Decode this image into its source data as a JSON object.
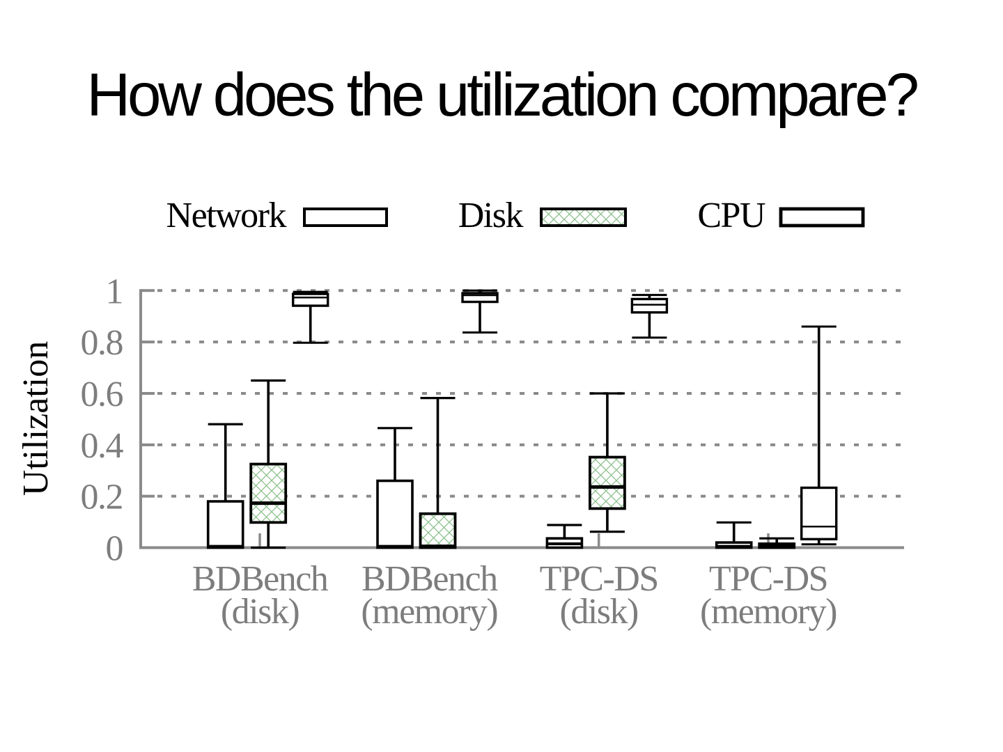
{
  "chart_data": {
    "type": "boxplot",
    "title": "How does the utilization compare?",
    "ylabel": "Utilization",
    "xlabel": "",
    "ylim": [
      0,
      1
    ],
    "yticks": [
      0,
      0.2,
      0.4,
      0.6,
      0.8,
      1
    ],
    "ytick_labels": [
      "0",
      "0.2",
      "0.4",
      "0.6",
      "0.8",
      "1"
    ],
    "grid": "dotted-horizontal",
    "legend_position": "top",
    "categories": [
      {
        "line1": "BDBench",
        "line2": "(disk)"
      },
      {
        "line1": "BDBench",
        "line2": "(memory)"
      },
      {
        "line1": "TPC-DS",
        "line2": "(disk)"
      },
      {
        "line1": "TPC-DS",
        "line2": "(memory)"
      }
    ],
    "legend": [
      {
        "label": "Network",
        "swatch": "white-box"
      },
      {
        "label": "Disk",
        "swatch": "green-crosshatch-box"
      },
      {
        "label": "CPU",
        "swatch": "white-box"
      }
    ],
    "series": [
      {
        "name": "Network",
        "fill": "white",
        "boxes": [
          {
            "low": 0.0,
            "q1": 0.0,
            "median": 0.005,
            "q3": 0.18,
            "high": 0.48
          },
          {
            "low": 0.0,
            "q1": 0.0,
            "median": 0.005,
            "q3": 0.26,
            "high": 0.465
          },
          {
            "low": 0.0,
            "q1": 0.0,
            "median": 0.015,
            "q3": 0.036,
            "high": 0.088
          },
          {
            "low": 0.0,
            "q1": 0.0,
            "median": 0.005,
            "q3": 0.02,
            "high": 0.098
          }
        ]
      },
      {
        "name": "Disk",
        "fill": "green-crosshatch",
        "boxes": [
          {
            "low": 0.0,
            "q1": 0.098,
            "median": 0.173,
            "q3": 0.325,
            "high": 0.65
          },
          {
            "low": 0.0,
            "q1": 0.0,
            "median": 0.005,
            "q3": 0.132,
            "high": 0.582
          },
          {
            "low": 0.062,
            "q1": 0.152,
            "median": 0.236,
            "q3": 0.352,
            "high": 0.6
          },
          {
            "low": 0.0,
            "q1": 0.0,
            "median": 0.005,
            "q3": 0.015,
            "high": 0.036
          }
        ]
      },
      {
        "name": "CPU",
        "fill": "white",
        "boxes": [
          {
            "low": 0.797,
            "q1": 0.941,
            "median": 0.973,
            "q3": 0.987,
            "high": 0.995
          },
          {
            "low": 0.837,
            "q1": 0.956,
            "median": 0.982,
            "q3": 0.99,
            "high": 1.0
          },
          {
            "low": 0.817,
            "q1": 0.915,
            "median": 0.945,
            "q3": 0.967,
            "high": 0.983
          },
          {
            "low": 0.013,
            "q1": 0.033,
            "median": 0.082,
            "q3": 0.233,
            "high": 0.86
          }
        ]
      }
    ],
    "colors": {
      "box_border": "#000000",
      "hatch_green": "#8cc08c",
      "axis_gray": "#8a8a8a",
      "tick_gray": "#8a8a8a",
      "grid_gray": "#8a8a8a",
      "label_gray": "#7d7d7d",
      "title_color": "#000000",
      "background": "#ffffff"
    }
  }
}
